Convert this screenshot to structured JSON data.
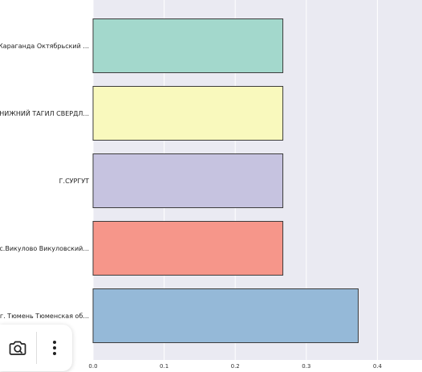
{
  "chart_data": {
    "type": "bar",
    "orientation": "horizontal",
    "categories": [
      "г.Караганда Октябрьский ...",
      "НИЖНИЙ ТАГИЛ СВЕРДЛ...",
      "Г.СУРГУТ",
      "с.Викулово Викуловский...",
      "г. Тюмень Тюменская об..."
    ],
    "values": [
      0.267,
      0.267,
      0.267,
      0.267,
      0.373
    ],
    "xlim": [
      0.0,
      0.46
    ],
    "xticks": [
      0.0,
      0.1,
      0.2,
      0.3,
      0.4
    ],
    "xtick_labels": [
      "0.0",
      "0.1",
      "0.2",
      "0.3",
      "0.4"
    ],
    "colors": [
      "#a3d8cc",
      "#f9f9bd",
      "#c6c3e0",
      "#f6968a",
      "#95b9d8"
    ],
    "edge_color": "#3c3c3c",
    "background": "#eaeaf2",
    "grid": true
  },
  "toolbar": {
    "items": [
      {
        "name": "camera-icon",
        "label": "camera"
      },
      {
        "name": "more-vertical-icon",
        "label": "more"
      }
    ]
  }
}
